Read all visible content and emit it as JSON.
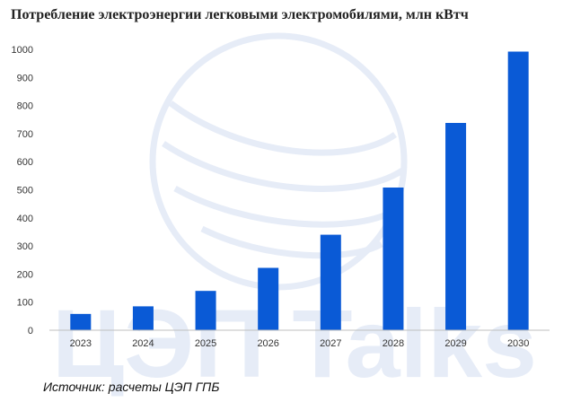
{
  "chart_data": {
    "type": "bar",
    "title": "Потребление электроэнергии легковыми электромобилями, млн кВтч",
    "categories": [
      "2023",
      "2024",
      "2025",
      "2026",
      "2027",
      "2028",
      "2029",
      "2030"
    ],
    "values": [
      58,
      85,
      140,
      222,
      340,
      508,
      738,
      992
    ],
    "xlabel": "",
    "ylabel": "",
    "ylim": [
      0,
      1000
    ],
    "yticks": [
      0,
      100,
      200,
      300,
      400,
      500,
      600,
      700,
      800,
      900,
      1000
    ],
    "grid": false,
    "legend": "none",
    "bar_color": "#0a5ad6"
  },
  "source": "Источник: расчеты ЦЭП ГПБ",
  "watermark": {
    "text": "ЦЭП Talks",
    "color": "#e6ecf7",
    "icon": "globe-logo"
  }
}
